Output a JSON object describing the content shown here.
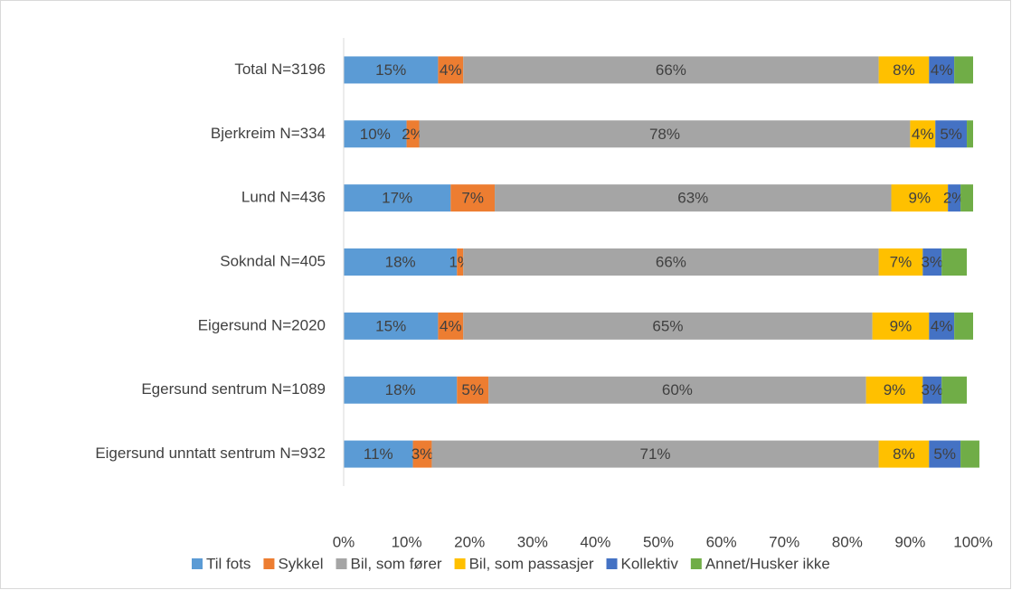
{
  "chart_data": {
    "type": "stacked-bar-horizontal",
    "categories": [
      "Total N=3196",
      "Bjerkreim N=334",
      "Lund N=436",
      "Sokndal N=405",
      "Eigersund N=2020",
      "Egersund sentrum N=1089",
      "Eigersund unntatt sentrum N=932"
    ],
    "series": [
      {
        "name": "Til fots",
        "color": "#5b9bd5",
        "values": [
          15,
          10,
          17,
          18,
          15,
          18,
          11
        ],
        "value_labels": [
          "15%",
          "10%",
          "17%",
          "18%",
          "15%",
          "18%",
          "11%"
        ]
      },
      {
        "name": "Sykkel",
        "color": "#ed7d31",
        "values": [
          4,
          2,
          7,
          1,
          4,
          5,
          3
        ],
        "value_labels": [
          "4%",
          "2%",
          "7%",
          "1%",
          "4%",
          "5%",
          "3%"
        ]
      },
      {
        "name": "Bil, som fører",
        "color": "#a5a5a5",
        "values": [
          66,
          78,
          63,
          66,
          65,
          60,
          71
        ],
        "value_labels": [
          "66%",
          "78%",
          "63%",
          "66%",
          "65%",
          "60%",
          "71%"
        ]
      },
      {
        "name": "Bil, som passasjer",
        "color": "#ffc000",
        "values": [
          8,
          4,
          9,
          7,
          9,
          9,
          8
        ],
        "value_labels": [
          "8%",
          "4%",
          "9%",
          "7%",
          "9%",
          "9%",
          "8%"
        ]
      },
      {
        "name": "Kollektiv",
        "color": "#4472c4",
        "values": [
          4,
          5,
          2,
          3,
          4,
          3,
          5
        ],
        "value_labels": [
          "4%",
          "5%",
          "2%",
          "3%",
          "4%",
          "3%",
          "5%"
        ]
      },
      {
        "name": "Annet/Husker ikke",
        "color": "#70ad47",
        "values": [
          3,
          1,
          2,
          4,
          3,
          4,
          3
        ]
      }
    ],
    "xlim": [
      0,
      100
    ],
    "xticks": [
      {
        "value": 0,
        "label": "0%"
      },
      {
        "value": 10,
        "label": "10%"
      },
      {
        "value": 20,
        "label": "20%"
      },
      {
        "value": 30,
        "label": "30%"
      },
      {
        "value": 40,
        "label": "40%"
      },
      {
        "value": 50,
        "label": "50%"
      },
      {
        "value": 60,
        "label": "60%"
      },
      {
        "value": 70,
        "label": "70%"
      },
      {
        "value": 80,
        "label": "80%"
      },
      {
        "value": 90,
        "label": "90%"
      },
      {
        "value": 100,
        "label": "100%"
      }
    ],
    "grid": false,
    "legend": "bottom"
  }
}
